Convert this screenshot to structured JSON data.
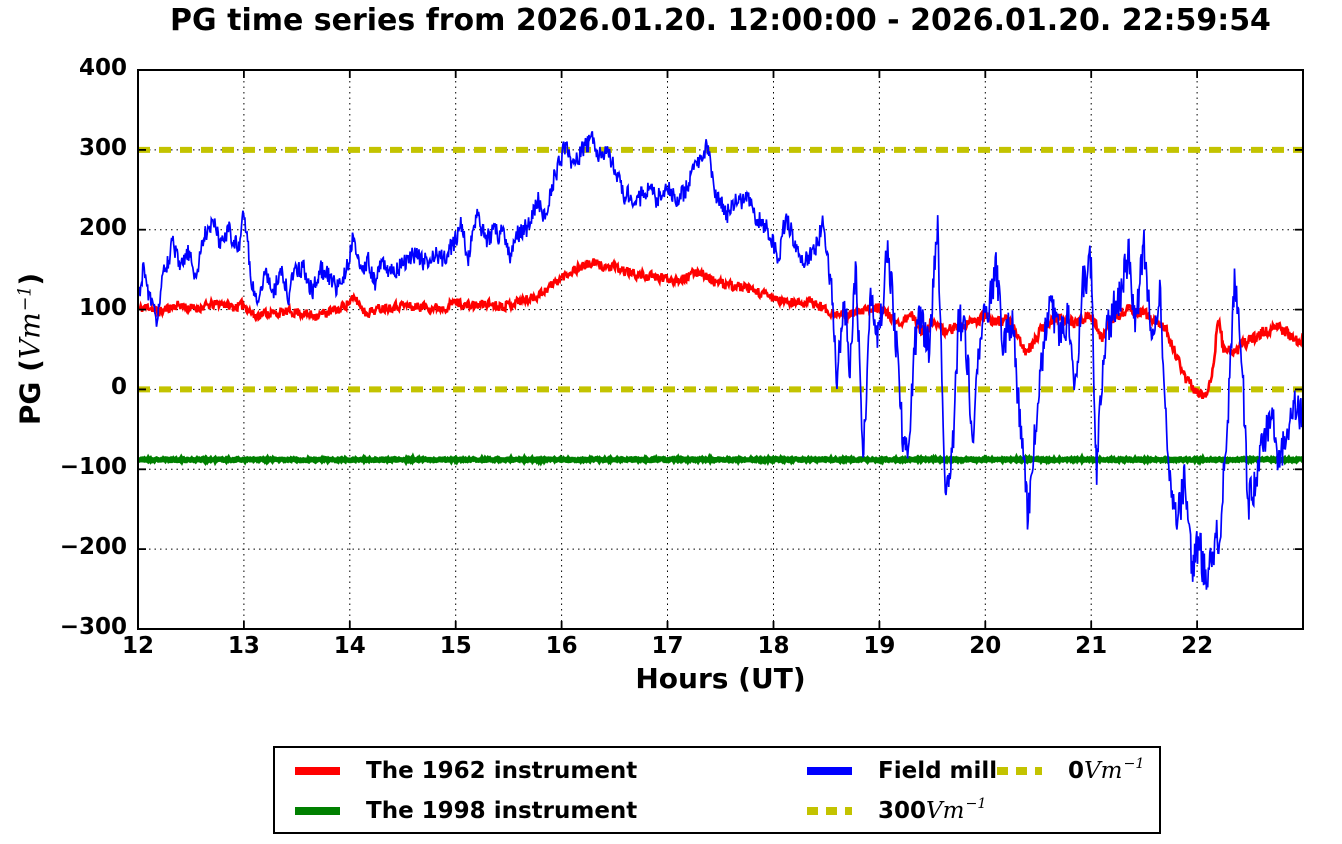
{
  "chart_data": {
    "type": "line",
    "title": "PG time series from 2026.01.20. 12:00:00 - 2026.01.20. 22:59:54",
    "xlabel": "Hours (UT)",
    "ylabel": {
      "prefix": "PG (",
      "math": "Vm",
      "sup": "−1",
      "suffix": ")"
    },
    "xlim": [
      12,
      23
    ],
    "ylim": [
      -300,
      400
    ],
    "grid": true,
    "legend_position": "below",
    "xticks": [
      12,
      13,
      14,
      15,
      16,
      17,
      18,
      19,
      20,
      21,
      22
    ],
    "xtick_labels": [
      "12",
      "13",
      "14",
      "15",
      "16",
      "17",
      "18",
      "19",
      "20",
      "21",
      "22"
    ],
    "yticks": [
      400,
      300,
      200,
      100,
      0,
      -100,
      -200,
      -300
    ],
    "ytick_labels": [
      "400",
      "300",
      "200",
      "100",
      "0",
      "−100",
      "−200",
      "−300"
    ],
    "series": [
      {
        "id": "ref-300",
        "name": "300 Vm-1 reference",
        "color": "#c3c300",
        "width": 6,
        "dash": "12 9",
        "sampled": false,
        "points": [
          [
            12,
            300
          ],
          [
            23,
            300
          ]
        ]
      },
      {
        "id": "ref-0",
        "name": "0 Vm-1 reference",
        "color": "#c3c300",
        "width": 6,
        "dash": "12 9",
        "sampled": false,
        "points": [
          [
            12,
            0
          ],
          [
            23,
            0
          ]
        ]
      },
      {
        "id": "the-1998-instrument",
        "name": "The 1998 instrument",
        "color": "#008000",
        "width": 5,
        "dash": "",
        "sampled": true,
        "seed": 21,
        "noise": [
          [
            12,
            1.2
          ],
          [
            23,
            1.2
          ]
        ],
        "points": [
          [
            12,
            -88
          ],
          [
            23,
            -88
          ]
        ]
      },
      {
        "id": "the-1962-instrument",
        "name": "The 1962 instrument",
        "color": "#ff0000",
        "width": 2.6,
        "dash": "",
        "sampled": true,
        "seed": 11,
        "noise": [
          [
            12,
            5.5
          ],
          [
            18.5,
            6
          ],
          [
            23,
            7
          ]
        ],
        "points": [
          [
            12,
            100
          ],
          [
            12.1,
            104
          ],
          [
            12.2,
            97
          ],
          [
            12.3,
            103
          ],
          [
            12.4,
            106
          ],
          [
            12.5,
            101
          ],
          [
            12.6,
            103
          ],
          [
            12.7,
            106
          ],
          [
            12.8,
            108
          ],
          [
            12.9,
            103
          ],
          [
            13,
            106
          ],
          [
            13.1,
            92
          ],
          [
            13.2,
            96
          ],
          [
            13.3,
            95
          ],
          [
            13.4,
            97
          ],
          [
            13.5,
            97
          ],
          [
            13.6,
            94
          ],
          [
            13.7,
            93
          ],
          [
            13.8,
            97
          ],
          [
            13.9,
            100
          ],
          [
            14,
            110
          ],
          [
            14.05,
            114
          ],
          [
            14.15,
            96
          ],
          [
            14.3,
            102
          ],
          [
            14.4,
            104
          ],
          [
            14.5,
            106
          ],
          [
            14.6,
            103
          ],
          [
            14.7,
            104
          ],
          [
            14.8,
            102
          ],
          [
            14.9,
            103
          ],
          [
            15,
            110
          ],
          [
            15.1,
            105
          ],
          [
            15.2,
            105
          ],
          [
            15.3,
            108
          ],
          [
            15.4,
            105
          ],
          [
            15.5,
            106
          ],
          [
            15.6,
            111
          ],
          [
            15.7,
            113
          ],
          [
            15.8,
            120
          ],
          [
            15.9,
            130
          ],
          [
            16,
            140
          ],
          [
            16.1,
            149
          ],
          [
            16.2,
            155
          ],
          [
            16.3,
            158
          ],
          [
            16.4,
            154
          ],
          [
            16.5,
            152
          ],
          [
            16.6,
            148
          ],
          [
            16.7,
            144
          ],
          [
            16.8,
            142
          ],
          [
            16.9,
            140
          ],
          [
            17,
            139
          ],
          [
            17.1,
            138
          ],
          [
            17.2,
            141
          ],
          [
            17.3,
            149
          ],
          [
            17.4,
            138
          ],
          [
            17.5,
            132
          ],
          [
            17.6,
            130
          ],
          [
            17.7,
            128
          ],
          [
            17.8,
            124
          ],
          [
            17.9,
            119
          ],
          [
            18,
            114
          ],
          [
            18.1,
            110
          ],
          [
            18.2,
            108
          ],
          [
            18.3,
            110
          ],
          [
            18.4,
            107
          ],
          [
            18.5,
            100
          ],
          [
            18.6,
            94
          ],
          [
            18.7,
            93
          ],
          [
            18.8,
            96
          ],
          [
            18.9,
            100
          ],
          [
            19,
            105
          ],
          [
            19.1,
            90
          ],
          [
            19.2,
            83
          ],
          [
            19.3,
            93
          ],
          [
            19.4,
            73
          ],
          [
            19.5,
            83
          ],
          [
            19.6,
            73
          ],
          [
            19.7,
            77
          ],
          [
            19.8,
            80
          ],
          [
            19.9,
            85
          ],
          [
            20,
            91
          ],
          [
            20.1,
            85
          ],
          [
            20.2,
            89
          ],
          [
            20.3,
            70
          ],
          [
            20.38,
            45
          ],
          [
            20.45,
            58
          ],
          [
            20.55,
            80
          ],
          [
            20.65,
            86
          ],
          [
            20.75,
            90
          ],
          [
            20.85,
            82
          ],
          [
            20.95,
            90
          ],
          [
            21,
            94
          ],
          [
            21.1,
            63
          ],
          [
            21.2,
            88
          ],
          [
            21.3,
            97
          ],
          [
            21.4,
            99
          ],
          [
            21.5,
            95
          ],
          [
            21.6,
            86
          ],
          [
            21.7,
            78
          ],
          [
            21.8,
            42
          ],
          [
            21.9,
            12
          ],
          [
            22,
            -4
          ],
          [
            22.1,
            -6
          ],
          [
            22.15,
            30
          ],
          [
            22.2,
            88
          ],
          [
            22.25,
            52
          ],
          [
            22.35,
            48
          ],
          [
            22.45,
            57
          ],
          [
            22.55,
            65
          ],
          [
            22.65,
            74
          ],
          [
            22.75,
            77
          ],
          [
            22.85,
            72
          ],
          [
            22.92,
            60
          ],
          [
            23,
            66
          ]
        ]
      },
      {
        "id": "field-mill",
        "name": "Field mill",
        "color": "#0000ff",
        "width": 1.7,
        "dash": "",
        "sampled": true,
        "seed": 31,
        "noise": [
          [
            12,
            12
          ],
          [
            18.5,
            13
          ],
          [
            18.62,
            24
          ],
          [
            23,
            26
          ]
        ],
        "points": [
          [
            12,
            110
          ],
          [
            12.05,
            152
          ],
          [
            12.1,
            120
          ],
          [
            12.17,
            85
          ],
          [
            12.25,
            148
          ],
          [
            12.33,
            183
          ],
          [
            12.4,
            148
          ],
          [
            12.47,
            172
          ],
          [
            12.55,
            140
          ],
          [
            12.62,
            192
          ],
          [
            12.7,
            213
          ],
          [
            12.78,
            182
          ],
          [
            12.85,
            205
          ],
          [
            12.95,
            172
          ],
          [
            13,
            228
          ],
          [
            13.06,
            148
          ],
          [
            13.12,
            108
          ],
          [
            13.2,
            150
          ],
          [
            13.28,
            122
          ],
          [
            13.35,
            150
          ],
          [
            13.42,
            118
          ],
          [
            13.5,
            155
          ],
          [
            13.58,
            148
          ],
          [
            13.65,
            122
          ],
          [
            13.72,
            150
          ],
          [
            13.8,
            143
          ],
          [
            13.88,
            128
          ],
          [
            13.97,
            150
          ],
          [
            14.03,
            193
          ],
          [
            14.1,
            148
          ],
          [
            14.17,
            163
          ],
          [
            14.24,
            132
          ],
          [
            14.3,
            158
          ],
          [
            14.4,
            148
          ],
          [
            14.5,
            160
          ],
          [
            14.6,
            168
          ],
          [
            14.7,
            158
          ],
          [
            14.8,
            172
          ],
          [
            14.9,
            163
          ],
          [
            15,
            188
          ],
          [
            15.05,
            207
          ],
          [
            15.12,
            162
          ],
          [
            15.2,
            228
          ],
          [
            15.28,
            183
          ],
          [
            15.35,
            198
          ],
          [
            15.45,
            193
          ],
          [
            15.52,
            168
          ],
          [
            15.6,
            198
          ],
          [
            15.7,
            203
          ],
          [
            15.78,
            238
          ],
          [
            15.85,
            215
          ],
          [
            15.92,
            262
          ],
          [
            16,
            292
          ],
          [
            16.05,
            302
          ],
          [
            16.12,
            278
          ],
          [
            16.2,
            303
          ],
          [
            16.3,
            312
          ],
          [
            16.38,
            288
          ],
          [
            16.45,
            298
          ],
          [
            16.52,
            262
          ],
          [
            16.6,
            243
          ],
          [
            16.7,
            233
          ],
          [
            16.8,
            250
          ],
          [
            16.9,
            238
          ],
          [
            17,
            253
          ],
          [
            17.1,
            233
          ],
          [
            17.2,
            258
          ],
          [
            17.3,
            288
          ],
          [
            17.37,
            303
          ],
          [
            17.45,
            248
          ],
          [
            17.55,
            218
          ],
          [
            17.65,
            233
          ],
          [
            17.75,
            243
          ],
          [
            17.85,
            213
          ],
          [
            17.95,
            198
          ],
          [
            18.05,
            163
          ],
          [
            18.12,
            218
          ],
          [
            18.2,
            183
          ],
          [
            18.3,
            158
          ],
          [
            18.4,
            178
          ],
          [
            18.47,
            212
          ],
          [
            18.55,
            120
          ],
          [
            18.6,
            8
          ],
          [
            18.67,
            108
          ],
          [
            18.72,
            28
          ],
          [
            18.78,
            148
          ],
          [
            18.85,
            -83
          ],
          [
            18.92,
            118
          ],
          [
            19,
            58
          ],
          [
            19.07,
            188
          ],
          [
            19.15,
            78
          ],
          [
            19.22,
            -55
          ],
          [
            19.27,
            -90
          ],
          [
            19.33,
            58
          ],
          [
            19.4,
            88
          ],
          [
            19.47,
            48
          ],
          [
            19.55,
            218
          ],
          [
            19.62,
            -143
          ],
          [
            19.7,
            -55
          ],
          [
            19.75,
            88
          ],
          [
            19.82,
            58
          ],
          [
            19.88,
            -63
          ],
          [
            19.95,
            68
          ],
          [
            20.02,
            88
          ],
          [
            20.1,
            158
          ],
          [
            20.17,
            58
          ],
          [
            20.25,
            88
          ],
          [
            20.33,
            -38
          ],
          [
            20.4,
            -158
          ],
          [
            20.47,
            -58
          ],
          [
            20.55,
            58
          ],
          [
            20.62,
            118
          ],
          [
            20.7,
            58
          ],
          [
            20.78,
            93
          ],
          [
            20.85,
            -8
          ],
          [
            20.92,
            128
          ],
          [
            21,
            158
          ],
          [
            21.05,
            -108
          ],
          [
            21.12,
            58
          ],
          [
            21.2,
            93
          ],
          [
            21.28,
            118
          ],
          [
            21.35,
            168
          ],
          [
            21.42,
            88
          ],
          [
            21.5,
            178
          ],
          [
            21.57,
            58
          ],
          [
            21.65,
            128
          ],
          [
            21.72,
            -93
          ],
          [
            21.8,
            -168
          ],
          [
            21.88,
            -118
          ],
          [
            21.95,
            -223
          ],
          [
            22.02,
            -193
          ],
          [
            22.08,
            -238
          ],
          [
            22.15,
            -213
          ],
          [
            22.22,
            -168
          ],
          [
            22.28,
            -58
          ],
          [
            22.35,
            138
          ],
          [
            22.42,
            58
          ],
          [
            22.48,
            -148
          ],
          [
            22.55,
            -108
          ],
          [
            22.62,
            -73
          ],
          [
            22.7,
            -38
          ],
          [
            22.78,
            -93
          ],
          [
            22.85,
            -58
          ],
          [
            22.92,
            -23
          ],
          [
            23,
            -43
          ]
        ]
      }
    ]
  },
  "legend": {
    "items": [
      {
        "id": "legend-the-1962-instrument",
        "swatch": "solid",
        "color": "#ff0000",
        "text": "The 1962 instrument",
        "math": "",
        "sup": "",
        "col": 0,
        "row": 0
      },
      {
        "id": "legend-the-1998-instrument",
        "swatch": "solid",
        "color": "#008000",
        "text": "The 1998 instrument",
        "math": "",
        "sup": "",
        "col": 0,
        "row": 1
      },
      {
        "id": "legend-field-mill",
        "swatch": "solid",
        "color": "#0000ff",
        "text": "Field mill",
        "math": "",
        "sup": "",
        "col": 1,
        "row": 0
      },
      {
        "id": "legend-ref-300",
        "swatch": "dashed",
        "color": "#c3c300",
        "text": "300 ",
        "math": "Vm",
        "sup": "−1",
        "col": 1,
        "row": 1
      },
      {
        "id": "legend-ref-0",
        "swatch": "dashed",
        "color": "#c3c300",
        "text": "0 ",
        "math": "Vm",
        "sup": "−1",
        "col": 2,
        "row": 0
      }
    ]
  }
}
